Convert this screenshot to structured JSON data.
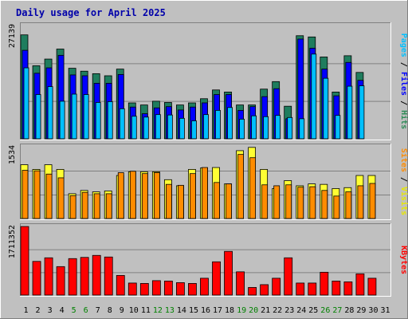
{
  "chart_data": {
    "type": "bar",
    "title": "Daily usage for April 2025",
    "categories": [
      "1",
      "2",
      "3",
      "4",
      "5",
      "6",
      "7",
      "8",
      "9",
      "10",
      "11",
      "12",
      "13",
      "14",
      "15",
      "16",
      "17",
      "18",
      "19",
      "20",
      "21",
      "22",
      "23",
      "24",
      "25",
      "26",
      "27",
      "28",
      "29",
      "30",
      "31"
    ],
    "weekend_days": [
      "5",
      "6",
      "12",
      "13",
      "19",
      "20",
      "26",
      "27"
    ],
    "panels": [
      {
        "id": "pages-files-hits",
        "max_label": "27139",
        "ylim": [
          0,
          27139
        ],
        "axis_label_parts": [
          {
            "text": "Pages",
            "color": "#00c0ff"
          },
          {
            "text": " / ",
            "color": "#000000"
          },
          {
            "text": "Files",
            "color": "#0000ff"
          },
          {
            "text": " / ",
            "color": "#000000"
          },
          {
            "text": "Hits",
            "color": "#2e8b57"
          }
        ],
        "series": [
          {
            "name": "Hits",
            "color": "#1f7d5e",
            "values": [
              24900,
              17500,
              19100,
              21500,
              16900,
              16200,
              15600,
              15100,
              16700,
              8600,
              8100,
              9000,
              8700,
              8100,
              8600,
              9600,
              11700,
              11200,
              8100,
              8100,
              11900,
              13700,
              7800,
              24700,
              24400,
              19600,
              11200,
              19900,
              15900,
              0,
              0
            ]
          },
          {
            "name": "Files",
            "color": "#0000ff",
            "values": [
              21200,
              15700,
              17000,
              20000,
              15300,
              15100,
              13300,
              13300,
              15400,
              7600,
              6000,
              7400,
              7700,
              6900,
              7600,
              8600,
              10600,
              10600,
              6800,
              7700,
              10100,
              12000,
              4800,
              23900,
              21700,
              16700,
              10300,
              18300,
              14000,
              0,
              0
            ]
          },
          {
            "name": "Pages",
            "color": "#00bfff",
            "values": [
              17000,
              10600,
              12500,
              9000,
              10700,
              10600,
              8700,
              8900,
              7200,
              5400,
              5200,
              5800,
              5700,
              4900,
              4300,
              5800,
              6800,
              7500,
              4700,
              5500,
              5300,
              5600,
              5100,
              4800,
              20300,
              14500,
              5600,
              12600,
              12700,
              0,
              0
            ]
          }
        ]
      },
      {
        "id": "sites-visits",
        "max_label": "1534",
        "ylim": [
          0,
          1534
        ],
        "axis_label_parts": [
          {
            "text": "Sites",
            "color": "#ff8c00"
          },
          {
            "text": " / ",
            "color": "#000000"
          },
          {
            "text": "Visits",
            "color": "#e8e800"
          }
        ],
        "series": [
          {
            "name": "Visits",
            "color": "#ffff33",
            "values": [
              1150,
              1050,
              1150,
              1050,
              530,
              600,
              570,
              590,
              920,
              1000,
              1000,
              1000,
              830,
              700,
              1050,
              1080,
              1090,
              740,
              1450,
              1520,
              1050,
              640,
              810,
              700,
              740,
              730,
              640,
              660,
              920,
              920,
              0
            ]
          },
          {
            "name": "Sites",
            "color": "#ff8c00",
            "values": [
              1030,
              1020,
              950,
              870,
              490,
              560,
              530,
              530,
              980,
              1010,
              960,
              980,
              730,
              710,
              960,
              1090,
              770,
              740,
              1370,
              1300,
              720,
              700,
              720,
              670,
              680,
              600,
              480,
              570,
              700,
              750,
              0
            ]
          }
        ]
      },
      {
        "id": "kbytes",
        "max_label": "1711352",
        "ylim": [
          0,
          1711352
        ],
        "axis_label_parts": [
          {
            "text": "KBytes",
            "color": "#ff0000"
          }
        ],
        "series": [
          {
            "name": "KBytes",
            "color": "#ff0000",
            "values": [
              1711352,
              840000,
              930000,
              710000,
              910000,
              940000,
              990000,
              950000,
              490000,
              300000,
              290000,
              360000,
              350000,
              310000,
              290000,
              420000,
              830000,
              1090000,
              580000,
              190000,
              260000,
              420000,
              930000,
              300000,
              300000,
              570000,
              350000,
              330000,
              530000,
              420000,
              0
            ]
          }
        ]
      }
    ]
  }
}
